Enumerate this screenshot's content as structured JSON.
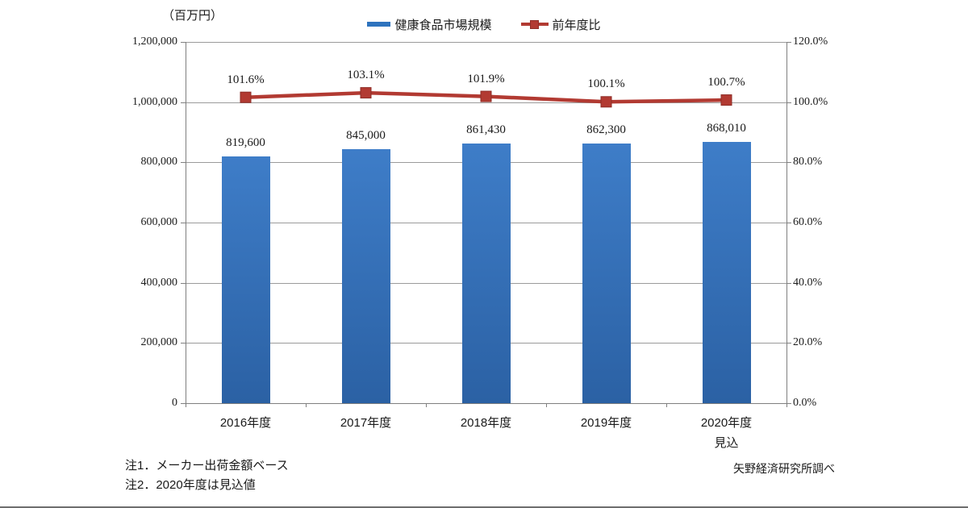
{
  "notes": [
    "注1．メーカー出荷金額ベース",
    "注2．2020年度は見込値"
  ],
  "credit": "矢野経済研究所調べ",
  "colors": {
    "bar_top": "#3E7DC8",
    "bar_bottom": "#2B61A4",
    "bar_legend": "#2E73BE",
    "line": "#B23A32",
    "marker_edge": "#8E2D27",
    "grid": "#9B9B9B",
    "axis": "#7F7F7F",
    "text": "#1A1A1A"
  },
  "chart_data": {
    "type": "bar+line",
    "title": "",
    "categories": [
      [
        "2016年度"
      ],
      [
        "2017年度"
      ],
      [
        "2018年度"
      ],
      [
        "2019年度"
      ],
      [
        "2020年度",
        "見込"
      ]
    ],
    "series": [
      {
        "name": "健康食品市場規模",
        "type": "bar",
        "axis": "left",
        "values": [
          819600,
          845000,
          861430,
          862300,
          868010
        ],
        "labels": [
          "819,600",
          "845,000",
          "861,430",
          "862,300",
          "868,010"
        ]
      },
      {
        "name": "前年度比",
        "type": "line",
        "axis": "right",
        "values": [
          101.6,
          103.1,
          101.9,
          100.1,
          100.7
        ],
        "labels": [
          "101.6%",
          "103.1%",
          "101.9%",
          "100.1%",
          "100.7%"
        ]
      }
    ],
    "left_axis": {
      "min": 0,
      "max": 1200000,
      "step": 200000,
      "unit_label": "（百万円）",
      "tick_labels": [
        "0",
        "200,000",
        "400,000",
        "600,000",
        "800,000",
        "1,000,000",
        "1,200,000"
      ]
    },
    "right_axis": {
      "min": 0,
      "max": 120,
      "step": 20,
      "tick_labels": [
        "0.0%",
        "20.0%",
        "40.0%",
        "60.0%",
        "80.0%",
        "100.0%",
        "120.0%"
      ]
    },
    "grid": true,
    "legend_position": "top"
  }
}
